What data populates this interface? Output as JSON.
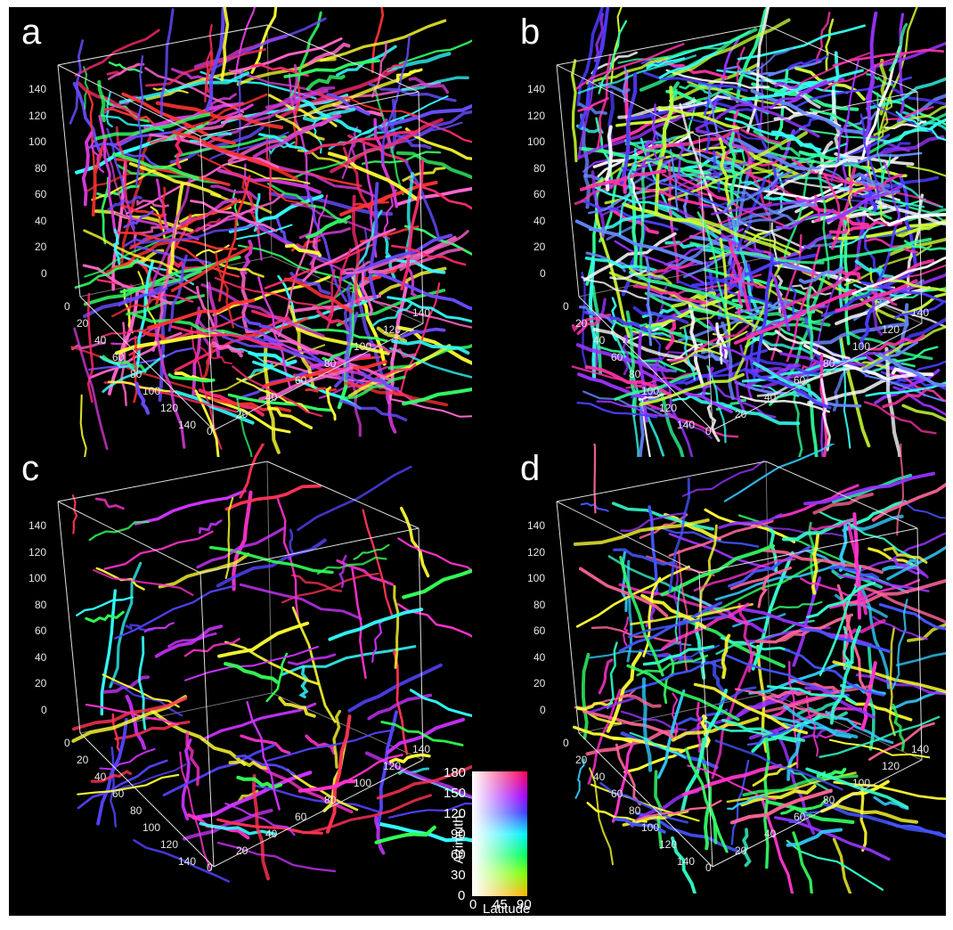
{
  "panels": [
    {
      "id": "a",
      "label": "a",
      "y_ticks": [
        "140",
        "120",
        "100",
        "80",
        "60",
        "40",
        "20",
        "0"
      ],
      "x_ticks": [
        "0",
        "20",
        "40",
        "60",
        "80",
        "100",
        "120",
        "140"
      ],
      "z_ticks": [
        "0",
        "20",
        "40",
        "60",
        "80",
        "100",
        "120",
        "140"
      ],
      "density": "high",
      "palette": [
        "#ff2a6d",
        "#d63bd6",
        "#ffff33",
        "#33ff66",
        "#33ffff",
        "#6a4bff",
        "#ff3333",
        "#ff66cc"
      ]
    },
    {
      "id": "b",
      "label": "b",
      "y_ticks": [
        "140",
        "120",
        "100",
        "80",
        "60",
        "40",
        "20",
        "0"
      ],
      "x_ticks": [
        "0",
        "20",
        "40",
        "60",
        "80",
        "100",
        "120",
        "140"
      ],
      "z_ticks": [
        "0",
        "20",
        "40",
        "60",
        "80",
        "100",
        "120",
        "140"
      ],
      "density": "very-high",
      "palette": [
        "#4b3cff",
        "#9933ff",
        "#33ffee",
        "#33ff99",
        "#ff33aa",
        "#ffffff",
        "#6688ff",
        "#ccff33"
      ]
    },
    {
      "id": "c",
      "label": "c",
      "y_ticks": [
        "140",
        "120",
        "100",
        "80",
        "60",
        "40",
        "20",
        "0"
      ],
      "x_ticks": [
        "0",
        "20",
        "40",
        "60",
        "80",
        "100",
        "120",
        "140"
      ],
      "z_ticks": [
        "0",
        "20",
        "40",
        "60",
        "80",
        "100",
        "120",
        "140"
      ],
      "density": "low",
      "palette": [
        "#ff33cc",
        "#cc33ff",
        "#ff3355",
        "#33ff55",
        "#ffff33",
        "#33ffff",
        "#5544ff"
      ]
    },
    {
      "id": "d",
      "label": "d",
      "y_ticks": [
        "140",
        "120",
        "100",
        "80",
        "60",
        "40",
        "20",
        "0"
      ],
      "x_ticks": [
        "0",
        "20",
        "40",
        "60",
        "80",
        "100",
        "120",
        "140"
      ],
      "z_ticks": [
        "0",
        "20",
        "40",
        "60",
        "80",
        "100",
        "120",
        "140"
      ],
      "density": "medium",
      "palette": [
        "#33ffcc",
        "#33ff66",
        "#4455ff",
        "#9933ff",
        "#ff33cc",
        "#33ccff",
        "#ffff33",
        "#ff6699"
      ]
    }
  ],
  "color_key": {
    "azimuth_label": "Azimuth",
    "latitude_label": "Latitude",
    "azimuth_ticks": [
      "180",
      "150",
      "120",
      "90",
      "60",
      "30",
      "0"
    ],
    "latitude_ticks": [
      "0",
      "45",
      "90"
    ]
  }
}
